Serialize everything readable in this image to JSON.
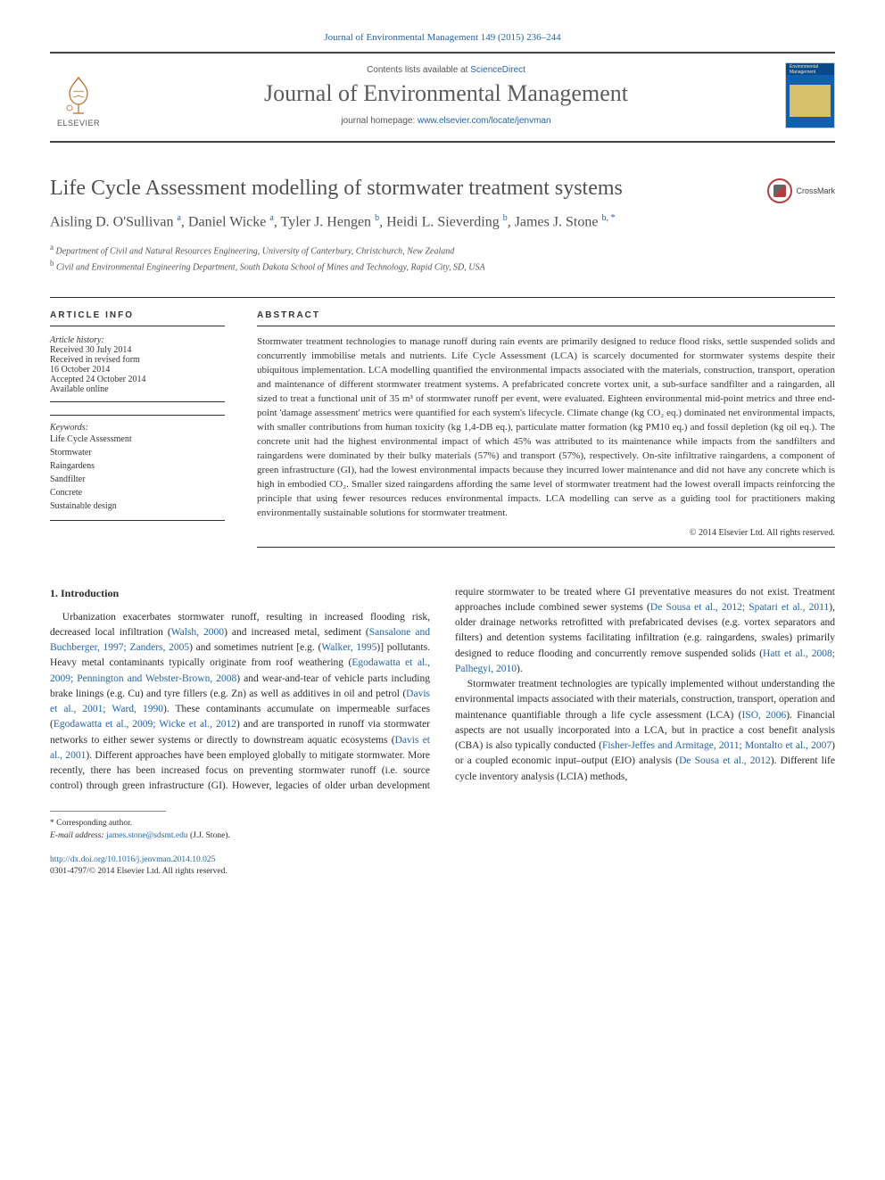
{
  "citation_line": "Journal of Environmental Management 149 (2015) 236–244",
  "header": {
    "contents_prefix": "Contents lists available at ",
    "contents_link": "ScienceDirect",
    "journal_name": "Journal of Environmental Management",
    "homepage_prefix": "journal homepage: ",
    "homepage_url": "www.elsevier.com/locate/jenvman",
    "publisher_word": "ELSEVIER",
    "cover_label": "Environmental Management"
  },
  "crossmark": "CrossMark",
  "title": "Life Cycle Assessment modelling of stormwater treatment systems",
  "authors_html": "Aisling D. O'Sullivan <sup>a</sup>, Daniel Wicke <sup>a</sup>, Tyler J. Hengen <sup>b</sup>, Heidi L. Sieverding <sup>b</sup>, James J. Stone <sup>b, *</sup>",
  "affiliations": [
    {
      "sup": "a",
      "text": "Department of Civil and Natural Resources Engineering, University of Canterbury, Christchurch, New Zealand"
    },
    {
      "sup": "b",
      "text": "Civil and Environmental Engineering Department, South Dakota School of Mines and Technology, Rapid City, SD, USA"
    }
  ],
  "article_info": {
    "heading": "ARTICLE INFO",
    "history_label": "Article history:",
    "history": [
      "Received 30 July 2014",
      "Received in revised form",
      "16 October 2014",
      "Accepted 24 October 2014",
      "Available online"
    ],
    "keywords_label": "Keywords:",
    "keywords": [
      "Life Cycle Assessment",
      "Stormwater",
      "Raingardens",
      "Sandfilter",
      "Concrete",
      "Sustainable design"
    ]
  },
  "abstract": {
    "heading": "ABSTRACT",
    "text": "Stormwater treatment technologies to manage runoff during rain events are primarily designed to reduce flood risks, settle suspended solids and concurrently immobilise metals and nutrients. Life Cycle Assessment (LCA) is scarcely documented for stormwater systems despite their ubiquitous implementation. LCA modelling quantified the environmental impacts associated with the materials, construction, transport, operation and maintenance of different stormwater treatment systems. A prefabricated concrete vortex unit, a sub-surface sandfilter and a raingarden, all sized to treat a functional unit of 35 m³ of stormwater runoff per event, were evaluated. Eighteen environmental mid-point metrics and three end-point 'damage assessment' metrics were quantified for each system's lifecycle. Climate change (kg CO₂ eq.) dominated net environmental impacts, with smaller contributions from human toxicity (kg 1,4-DB eq.), particulate matter formation (kg PM10 eq.) and fossil depletion (kg oil eq.). The concrete unit had the highest environmental impact of which 45% was attributed to its maintenance while impacts from the sandfilters and raingardens were dominated by their bulky materials (57%) and transport (57%), respectively. On-site infiltrative raingardens, a component of green infrastructure (GI), had the lowest environmental impacts because they incurred lower maintenance and did not have any concrete which is high in embodied CO₂. Smaller sized raingardens affording the same level of stormwater treatment had the lowest overall impacts reinforcing the principle that using fewer resources reduces environmental impacts. LCA modelling can serve as a guiding tool for practitioners making environmentally sustainable solutions for stormwater treatment.",
    "copyright": "© 2014 Elsevier Ltd. All rights reserved."
  },
  "intro": {
    "heading": "1. Introduction",
    "p1_pre": "Urbanization exacerbates stormwater runoff, resulting in increased flooding risk, decreased local infiltration (",
    "r1": "Walsh, 2000",
    "p1_a": ") and increased metal, sediment (",
    "r2": "Sansalone and Buchberger, 1997; Zanders, 2005",
    "p1_b": ") and sometimes nutrient [e.g. (",
    "r3": "Walker, 1995",
    "p1_c": ")] pollutants. Heavy metal contaminants typically originate from roof weathering (",
    "r4": "Egodawatta et al., 2009; Pennington and Webster-Brown, 2008",
    "p1_d": ") and wear-and-tear of vehicle parts including brake linings (e.g. Cu) and tyre fillers (e.g. Zn) as well as additives in oil and petrol (",
    "r5": "Davis et al., 2001; Ward, 1990",
    "p1_e": "). These contaminants accumulate on impermeable surfaces (",
    "r6": "Egodawatta et al., 2009; Wicke et al., 2012",
    "p1_f": ") and are transported in runoff via stormwater networks to either sewer systems or directly to downstream aquatic ecosystems (",
    "r7": "Davis et al., 2001",
    "p1_g": "). Different approaches have been employed globally to mitigate stormwater. More recently, ",
    "p2_a": "there has been increased focus on preventing stormwater runoff (i.e. source control) through green infrastructure (GI). However, legacies of older urban development require stormwater to be treated where GI preventative measures do not exist. Treatment approaches include combined sewer systems (",
    "r8": "De Sousa et al., 2012; Spatari et al., 2011",
    "p2_b": "), older drainage networks retrofitted with prefabricated devises (e.g. vortex separators and filters) and detention systems facilitating infiltration (e.g. raingardens, swales) primarily designed to reduce flooding and concurrently remove suspended solids (",
    "r9": "Hatt et al., 2008; Palhegyi, 2010",
    "p2_c": ").",
    "p3_a": "Stormwater treatment technologies are typically implemented without understanding the environmental impacts associated with their materials, construction, transport, operation and maintenance quantifiable through a life cycle assessment (LCA) (",
    "r10": "ISO, 2006",
    "p3_b": "). Financial aspects are not usually incorporated into a LCA, but in practice a cost benefit analysis (CBA) is also typically conducted (",
    "r11": "Fisher-Jeffes and Armitage, 2011; Montalto et al., 2007",
    "p3_c": ") or a coupled economic input–output (EIO) analysis (",
    "r12": "De Sousa et al., 2012",
    "p3_d": "). Different life cycle inventory analysis (LCIA) methods,"
  },
  "footnotes": {
    "corr_label": "* Corresponding author.",
    "email_label": "E-mail address: ",
    "email": "james.stone@sdsmt.edu",
    "email_suffix": " (J.J. Stone)."
  },
  "doi": {
    "url": "http://dx.doi.org/10.1016/j.jenvman.2014.10.025",
    "issn_line": "0301-4797/© 2014 Elsevier Ltd. All rights reserved."
  },
  "colors": {
    "link": "#2563a8",
    "text": "#2b2b2b",
    "heading_gray": "#505050"
  }
}
